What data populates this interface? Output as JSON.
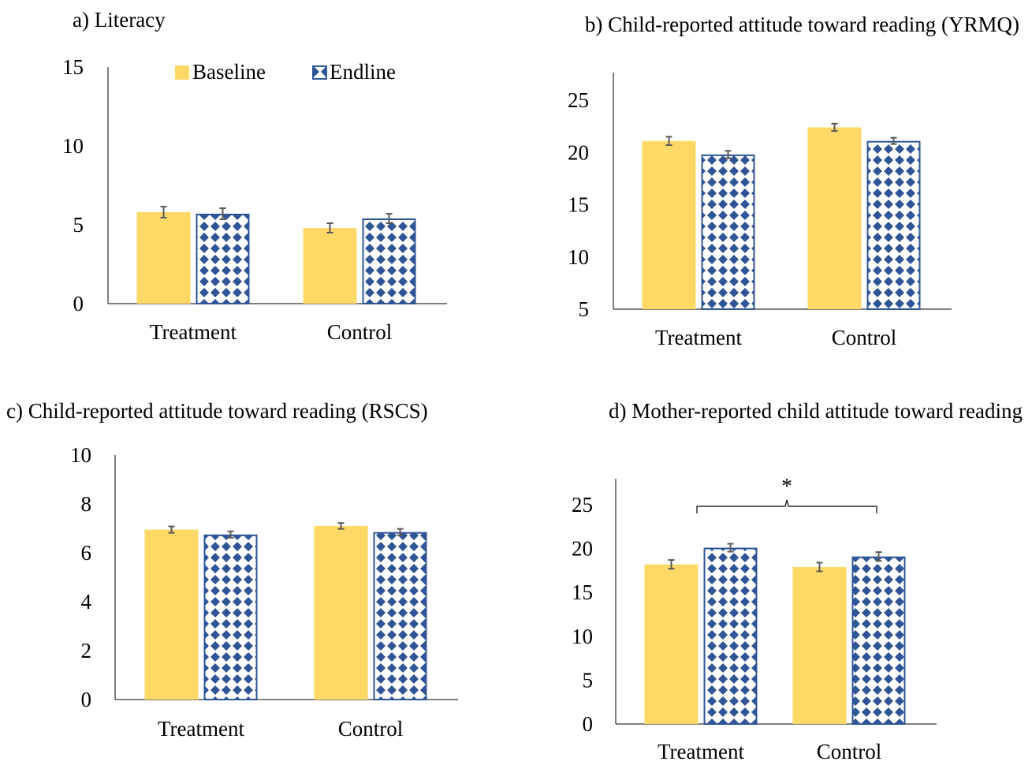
{
  "colors": {
    "baseline": "#FFD966",
    "endline_fill": "#2F5597",
    "endline_bg": "#FFFFFF",
    "error_bar": "#595959",
    "axis": "#000000"
  },
  "legend": {
    "items": [
      {
        "label": "Baseline",
        "style": "solid"
      },
      {
        "label": "Endline",
        "style": "diamond-pattern"
      }
    ],
    "placement": "top-center of panel a"
  },
  "chart_data": [
    {
      "type": "bar",
      "title": "a) Literacy",
      "categories": [
        "Treatment",
        "Control"
      ],
      "ylim": [
        0,
        15
      ],
      "yticks": [
        "0",
        "5",
        "10",
        "15"
      ],
      "series": [
        {
          "name": "Baseline",
          "values": [
            5.8,
            4.8
          ],
          "errors": [
            0.35,
            0.3
          ]
        },
        {
          "name": "Endline",
          "values": [
            5.7,
            5.4
          ],
          "errors": [
            0.35,
            0.3
          ]
        }
      ],
      "annotation": ""
    },
    {
      "type": "bar",
      "title": "b) Child-reported attitude toward reading (YRMQ)",
      "categories": [
        "Treatment",
        "Control"
      ],
      "ylim": [
        5,
        28
      ],
      "yticks": [
        "5",
        "10",
        "15",
        "20",
        "25"
      ],
      "series": [
        {
          "name": "Baseline",
          "values": [
            21.1,
            22.4
          ],
          "errors": [
            0.4,
            0.35
          ]
        },
        {
          "name": "Endline",
          "values": [
            19.8,
            21.1
          ],
          "errors": [
            0.35,
            0.3
          ]
        }
      ],
      "annotation": ""
    },
    {
      "type": "bar",
      "title": "c) Child-reported attitude toward reading (RSCS)",
      "categories": [
        "Treatment",
        "Control"
      ],
      "ylim": [
        0,
        10
      ],
      "yticks": [
        "0",
        "2",
        "4",
        "6",
        "8",
        "10"
      ],
      "series": [
        {
          "name": "Baseline",
          "values": [
            6.95,
            7.1
          ],
          "errors": [
            0.13,
            0.12
          ]
        },
        {
          "name": "Endline",
          "values": [
            6.75,
            6.85
          ],
          "errors": [
            0.13,
            0.13
          ]
        }
      ],
      "annotation": ""
    },
    {
      "type": "bar",
      "title": "d) Mother-reported child attitude toward reading",
      "categories": [
        "Treatment",
        "Control"
      ],
      "ylim": [
        0,
        28
      ],
      "yticks": [
        "0",
        "5",
        "10",
        "15",
        "20",
        "25"
      ],
      "series": [
        {
          "name": "Baseline",
          "values": [
            18.2,
            17.9
          ],
          "errors": [
            0.5,
            0.5
          ]
        },
        {
          "name": "Endline",
          "values": [
            20.1,
            19.1
          ],
          "errors": [
            0.45,
            0.5
          ]
        }
      ],
      "annotation": "*"
    }
  ]
}
